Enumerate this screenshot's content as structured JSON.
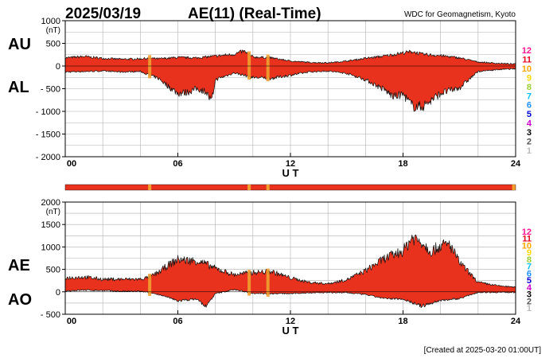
{
  "header": {
    "date": "2025/03/19",
    "title": "AE(11) (Real-Time)",
    "source": "WDC for Geomagnetism, Kyoto"
  },
  "footer": {
    "created": "[Created at 2025-03-20 01:00UT]"
  },
  "level_scale": {
    "labels": [
      "12",
      "11",
      "10",
      "9",
      "8",
      "7",
      "6",
      "5",
      "4",
      "3",
      "2",
      "1"
    ],
    "colors": [
      "#ff1493",
      "#e8001c",
      "#ffa500",
      "#ffd700",
      "#9acd32",
      "#00bfff",
      "#1e90ff",
      "#0000cd",
      "#cc00cc",
      "#000000",
      "#555555",
      "#bbbbbb"
    ]
  },
  "station_bar": {
    "base_color": "#e8321e",
    "marker_color": "#f0a030",
    "markers_ut_hours": [
      4.5,
      9.8,
      10.8,
      23.9
    ]
  },
  "chart_data": [
    {
      "type": "area",
      "name": "AU / AL",
      "title": "AE(11) (Real-Time)",
      "xlabel": "U T",
      "ylabel": "(nT)",
      "xlim": [
        0,
        24
      ],
      "ylim": [
        -2000,
        1000
      ],
      "x_ticks": [
        "00",
        "06",
        "12",
        "18",
        "24"
      ],
      "y_ticks": [
        "1000",
        "500",
        "0",
        "- 500",
        "- 1000",
        "- 1500",
        "- 2000"
      ],
      "y_tick_values": [
        1000,
        500,
        0,
        -500,
        -1000,
        -1500,
        -2000
      ],
      "series_labels": [
        "AU",
        "AL"
      ],
      "fill_color": "#e8321e",
      "grid": true,
      "series": [
        {
          "name": "AU",
          "x": [
            0,
            1,
            2,
            3,
            4,
            4.5,
            5,
            6,
            7,
            8,
            9,
            9.5,
            10,
            11,
            12,
            13,
            14,
            15,
            16,
            17,
            18,
            18.5,
            19,
            20,
            21,
            22,
            23,
            24
          ],
          "values": [
            180,
            210,
            170,
            150,
            160,
            170,
            160,
            190,
            180,
            220,
            260,
            330,
            200,
            180,
            110,
            80,
            70,
            110,
            170,
            220,
            290,
            320,
            260,
            230,
            180,
            90,
            60,
            40
          ]
        },
        {
          "name": "AL",
          "x": [
            0,
            1,
            2,
            3,
            4,
            4.5,
            5,
            5.5,
            6,
            6.5,
            7,
            7.5,
            7.8,
            8,
            9,
            10,
            11,
            12,
            13,
            14,
            15,
            16,
            17,
            17.5,
            18,
            18.5,
            19,
            19.5,
            20,
            21,
            22,
            23,
            24
          ],
          "values": [
            -130,
            -120,
            -110,
            -130,
            -120,
            -200,
            -280,
            -450,
            -600,
            -580,
            -500,
            -560,
            -800,
            -300,
            -150,
            -250,
            -270,
            -200,
            -130,
            -110,
            -160,
            -300,
            -520,
            -680,
            -620,
            -880,
            -900,
            -760,
            -600,
            -480,
            -120,
            -80,
            -60
          ]
        }
      ]
    },
    {
      "type": "area",
      "name": "AE / AO",
      "xlabel": "U T",
      "ylabel": "(nT)",
      "xlim": [
        0,
        24
      ],
      "ylim": [
        -500,
        2000
      ],
      "x_ticks": [
        "00",
        "06",
        "12",
        "18",
        "24"
      ],
      "y_ticks": [
        "2000",
        "1500",
        "1000",
        "500",
        "0",
        "- 500"
      ],
      "y_tick_values": [
        2000,
        1500,
        1000,
        500,
        0,
        -500
      ],
      "series_labels": [
        "AE",
        "AO"
      ],
      "fill_color": "#e8321e",
      "grid": true,
      "series": [
        {
          "name": "AE",
          "x": [
            0,
            1,
            2,
            3,
            4,
            4.5,
            5,
            5.5,
            6,
            6.5,
            7,
            7.5,
            8,
            9,
            10,
            11,
            12,
            13,
            14,
            15,
            16,
            17,
            18,
            18.5,
            19,
            19.5,
            20,
            20.5,
            21,
            22,
            23,
            24
          ],
          "values": [
            310,
            330,
            280,
            280,
            280,
            330,
            440,
            600,
            720,
            700,
            690,
            620,
            520,
            380,
            430,
            450,
            310,
            210,
            180,
            270,
            470,
            740,
            910,
            1220,
            1110,
            900,
            1030,
            1050,
            660,
            210,
            140,
            100
          ]
        },
        {
          "name": "AO",
          "x": [
            0,
            1,
            2,
            3,
            4,
            4.5,
            5,
            6,
            7,
            7.5,
            8,
            9,
            10,
            11,
            12,
            13,
            14,
            15,
            16,
            17,
            18,
            19,
            20,
            21,
            22,
            23,
            24
          ],
          "values": [
            20,
            40,
            30,
            10,
            10,
            -20,
            -60,
            -200,
            -160,
            -330,
            -40,
            50,
            -30,
            -40,
            -40,
            -20,
            -15,
            -20,
            -60,
            -150,
            -160,
            -320,
            -190,
            -150,
            -10,
            -10,
            -10
          ]
        }
      ]
    }
  ]
}
